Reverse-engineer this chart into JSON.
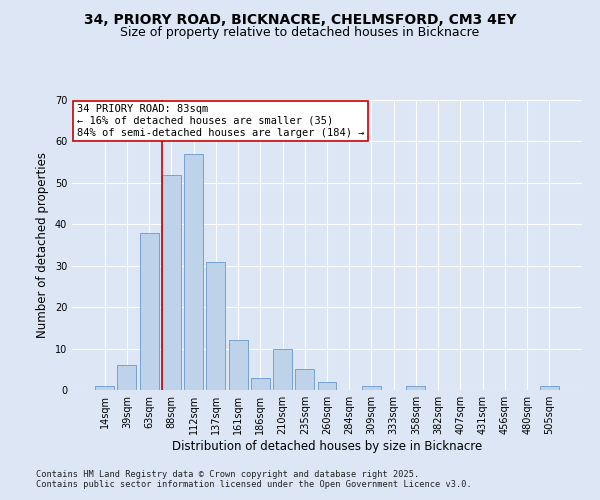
{
  "title1": "34, PRIORY ROAD, BICKNACRE, CHELMSFORD, CM3 4EY",
  "title2": "Size of property relative to detached houses in Bicknacre",
  "xlabel": "Distribution of detached houses by size in Bicknacre",
  "ylabel": "Number of detached properties",
  "categories": [
    "14sqm",
    "39sqm",
    "63sqm",
    "88sqm",
    "112sqm",
    "137sqm",
    "161sqm",
    "186sqm",
    "210sqm",
    "235sqm",
    "260sqm",
    "284sqm",
    "309sqm",
    "333sqm",
    "358sqm",
    "382sqm",
    "407sqm",
    "431sqm",
    "456sqm",
    "480sqm",
    "505sqm"
  ],
  "values": [
    1,
    6,
    38,
    52,
    57,
    31,
    12,
    3,
    10,
    5,
    2,
    0,
    1,
    0,
    1,
    0,
    0,
    0,
    0,
    0,
    1
  ],
  "bar_color": "#bed3ea",
  "bar_edge_color": "#6699cc",
  "annotation_line1": "34 PRIORY ROAD: 83sqm",
  "annotation_line2": "← 16% of detached houses are smaller (35)",
  "annotation_line3": "84% of semi-detached houses are larger (184) →",
  "vline_color": "#cc0000",
  "annotation_box_color": "#ffffff",
  "annotation_box_edge": "#cc0000",
  "bg_color": "#dce6f5",
  "plot_bg_color": "#dce6f5",
  "ylim": [
    0,
    70
  ],
  "yticks": [
    0,
    10,
    20,
    30,
    40,
    50,
    60,
    70
  ],
  "grid_color": "#ffffff",
  "footer1": "Contains HM Land Registry data © Crown copyright and database right 2025.",
  "footer2": "Contains public sector information licensed under the Open Government Licence v3.0.",
  "title_fontsize": 10,
  "subtitle_fontsize": 9,
  "axis_label_fontsize": 8.5,
  "tick_fontsize": 7,
  "annotation_fontsize": 7.5
}
